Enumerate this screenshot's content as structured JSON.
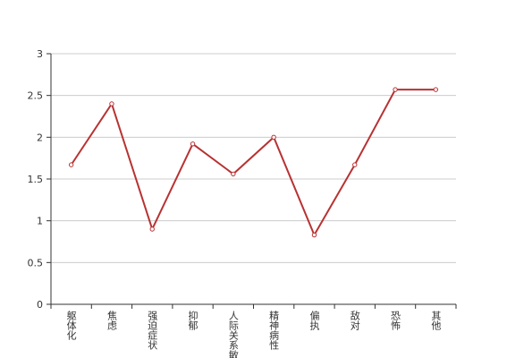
{
  "chart_data": {
    "type": "line",
    "categories": [
      "躯体化",
      "焦虑",
      "强迫症状",
      "抑郁",
      "人际关系敏感",
      "精神病性",
      "偏执",
      "敌对",
      "恐怖",
      "其他"
    ],
    "values": [
      1.67,
      2.4,
      0.9,
      1.92,
      1.56,
      2.0,
      0.83,
      1.67,
      2.57,
      2.57
    ],
    "color": "#b83232",
    "ylim": [
      0,
      3
    ],
    "yticks": [
      0,
      0.5,
      1,
      1.5,
      2,
      2.5,
      3
    ],
    "grid": true
  }
}
